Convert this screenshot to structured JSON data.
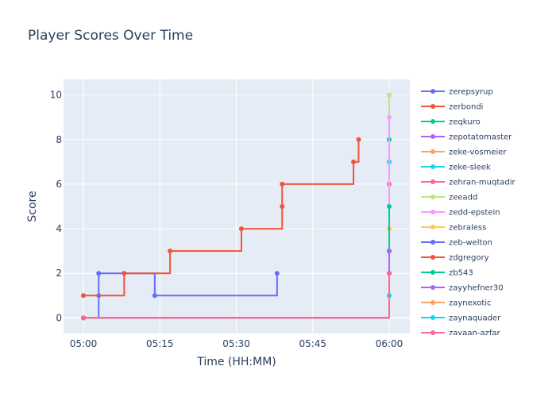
{
  "chart_data": {
    "type": "line",
    "line_shape": "step",
    "title": "Player Scores Over Time",
    "xlabel": "Time (HH:MM)",
    "ylabel": "Score",
    "x_ticks": [
      "05:00",
      "05:15",
      "05:30",
      "05:45",
      "06:00"
    ],
    "y_ticks": [
      0,
      2,
      4,
      6,
      8,
      10
    ],
    "ylim": [
      -0.7,
      10.7
    ],
    "grid": true,
    "legend_position": "right",
    "series": [
      {
        "name": "zerepsyrup",
        "color": "#636efa",
        "x": [
          "05:00",
          "05:03",
          "05:03",
          "05:14",
          "05:38"
        ],
        "y": [
          0,
          1,
          2,
          1,
          2
        ]
      },
      {
        "name": "zerbondi",
        "color": "#EF553B",
        "x": [
          "05:00",
          "05:08",
          "05:17",
          "05:31",
          "05:39",
          "05:39",
          "05:53",
          "05:54"
        ],
        "y": [
          1,
          2,
          3,
          4,
          5,
          6,
          7,
          8
        ]
      },
      {
        "name": "zeqkuro",
        "color": "#00cc96",
        "x": [
          "05:00",
          "06:00"
        ],
        "y": [
          0,
          8
        ]
      },
      {
        "name": "zepotatomaster",
        "color": "#ab63fa",
        "x": [
          "05:00",
          "06:00"
        ],
        "y": [
          0,
          7
        ]
      },
      {
        "name": "zeke-vosmeier",
        "color": "#FFA15A",
        "x": [
          "05:00",
          "06:00"
        ],
        "y": [
          0,
          4
        ]
      },
      {
        "name": "zeke-sleek",
        "color": "#19d3f3",
        "x": [
          "05:00",
          "06:00"
        ],
        "y": [
          0,
          7
        ]
      },
      {
        "name": "zehran-muqtadir",
        "color": "#FF6692",
        "x": [
          "05:00",
          "06:00"
        ],
        "y": [
          0,
          6
        ]
      },
      {
        "name": "zeeadd",
        "color": "#B6E880",
        "x": [
          "05:00",
          "06:00"
        ],
        "y": [
          0,
          10
        ]
      },
      {
        "name": "zedd-epstein",
        "color": "#FF97FF",
        "x": [
          "05:00",
          "06:00"
        ],
        "y": [
          0,
          9
        ]
      },
      {
        "name": "zebraless",
        "color": "#FECB52",
        "x": [
          "05:00",
          "06:00"
        ],
        "y": [
          0,
          4
        ]
      },
      {
        "name": "zeb-welton",
        "color": "#636efa",
        "x": [
          "05:00",
          "06:00"
        ],
        "y": [
          0,
          3
        ]
      },
      {
        "name": "zdgregory",
        "color": "#EF553B",
        "x": [
          "05:00",
          "06:00"
        ],
        "y": [
          0,
          2
        ]
      },
      {
        "name": "zb543",
        "color": "#00cc96",
        "x": [
          "05:00",
          "06:00"
        ],
        "y": [
          0,
          5
        ]
      },
      {
        "name": "zayyhefner30",
        "color": "#ab63fa",
        "x": [
          "05:00",
          "06:00"
        ],
        "y": [
          0,
          3
        ]
      },
      {
        "name": "zaynexotic",
        "color": "#FFA15A",
        "x": [
          "05:00",
          "06:00"
        ],
        "y": [
          0,
          1
        ]
      },
      {
        "name": "zaynaquader",
        "color": "#19d3f3",
        "x": [
          "05:00",
          "06:00"
        ],
        "y": [
          0,
          1
        ]
      },
      {
        "name": "zayaan-azfar",
        "color": "#FF6692",
        "x": [
          "05:00",
          "06:00"
        ],
        "y": [
          0,
          2
        ]
      }
    ]
  }
}
